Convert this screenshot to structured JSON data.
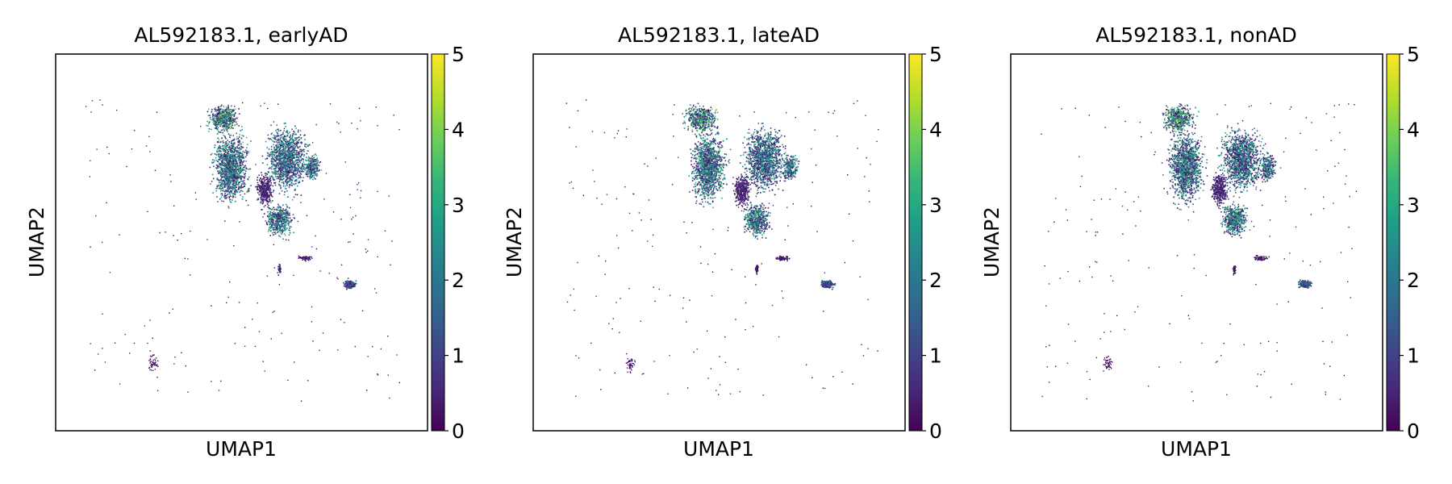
{
  "colormap": {
    "name": "viridis",
    "stops": [
      "#440154",
      "#482878",
      "#3e4989",
      "#31688e",
      "#26828e",
      "#1f9e89",
      "#35b779",
      "#6ece58",
      "#b5de2b",
      "#fde725"
    ]
  },
  "chart_data": [
    {
      "type": "scatter",
      "title": "AL592183.1, earlyAD",
      "xlabel": "UMAP1",
      "ylabel": "UMAP2",
      "colorbar": {
        "ticks": [
          "0",
          "1",
          "2",
          "3",
          "4",
          "5"
        ],
        "range": [
          0,
          5
        ]
      },
      "grid": false
    },
    {
      "type": "scatter",
      "title": "AL592183.1, lateAD",
      "xlabel": "UMAP1",
      "ylabel": "UMAP2",
      "colorbar": {
        "ticks": [
          "0",
          "1",
          "2",
          "3",
          "4",
          "5"
        ],
        "range": [
          0,
          5
        ]
      },
      "grid": false
    },
    {
      "type": "scatter",
      "title": "AL592183.1, nonAD",
      "xlabel": "UMAP1",
      "ylabel": "UMAP2",
      "colorbar": {
        "ticks": [
          "0",
          "1",
          "2",
          "3",
          "4",
          "5"
        ],
        "range": [
          0,
          5
        ]
      },
      "grid": false
    }
  ]
}
